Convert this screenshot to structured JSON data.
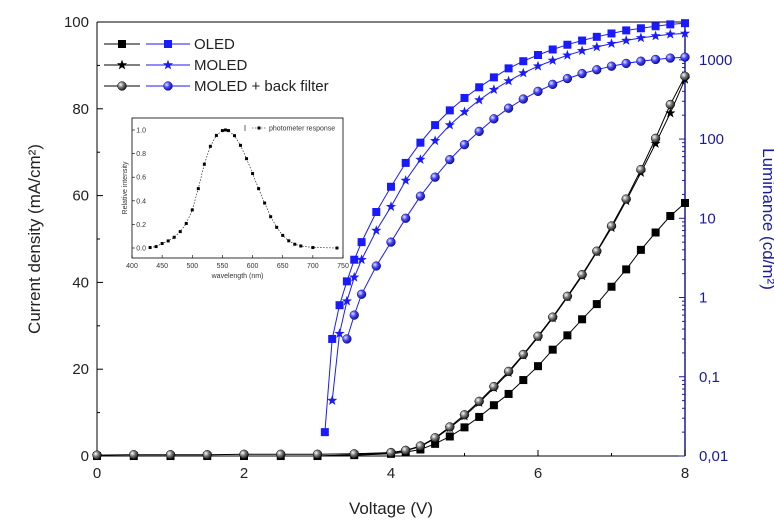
{
  "chart_data": [
    {
      "type": "scatter",
      "xlabel": "Voltage (V)",
      "ylabel": "Current density (mA/cm²)",
      "y2label": "Luminance (cd/m²)",
      "xlim": [
        0,
        8
      ],
      "ylim": [
        0,
        100
      ],
      "y2lim": [
        0.01,
        3000
      ],
      "y2scale": "log",
      "x_ticks": [
        "0",
        "2",
        "4",
        "6",
        "8"
      ],
      "y_ticks": [
        "0",
        "20",
        "40",
        "60",
        "80",
        "100"
      ],
      "y2_ticks": [
        "0,01",
        "0,1",
        "1",
        "10",
        "100",
        "1000"
      ],
      "legend": {
        "position": "top-left",
        "entries": [
          "OLED",
          "MOLED",
          "MOLED + back filter"
        ]
      },
      "series": [
        {
          "name": "OLED",
          "axis": "left",
          "marker": "square",
          "color": "#000000",
          "x": [
            0,
            0.5,
            1,
            1.5,
            2,
            2.5,
            3,
            3.5,
            4,
            4.2,
            4.4,
            4.6,
            4.8,
            5,
            5.2,
            5.4,
            5.6,
            5.8,
            6,
            6.2,
            6.4,
            6.6,
            6.8,
            7,
            7.2,
            7.4,
            7.6,
            7.8,
            8
          ],
          "values": [
            0,
            0,
            0,
            0,
            0,
            0,
            0,
            0.2,
            0.5,
            0.9,
            1.5,
            2.8,
            4.5,
            6.6,
            9,
            11.7,
            14.3,
            17.5,
            20.7,
            24.5,
            27.8,
            31.5,
            35,
            39,
            43,
            47.5,
            51.5,
            55.3,
            58.3
          ]
        },
        {
          "name": "MOLED",
          "axis": "left",
          "marker": "star",
          "color": "#000000",
          "x": [
            0,
            0.5,
            1,
            1.5,
            2,
            2.5,
            3,
            3.5,
            4,
            4.2,
            4.4,
            4.6,
            4.8,
            5,
            5.2,
            5.4,
            5.6,
            5.8,
            6,
            6.2,
            6.4,
            6.6,
            6.8,
            7,
            7.2,
            7.4,
            7.6,
            7.8,
            8
          ],
          "values": [
            0,
            0,
            0,
            0,
            0,
            0,
            0,
            0.3,
            0.7,
            1.2,
            2.2,
            4,
            6.5,
            9.2,
            12.3,
            15.7,
            19.2,
            23.2,
            27.4,
            31.8,
            36.6,
            41.5,
            47,
            52.6,
            58.8,
            65.3,
            72,
            79,
            86.8
          ]
        },
        {
          "name": "MOLED + back filter",
          "axis": "left",
          "marker": "sphere",
          "color": "#000000",
          "x": [
            0,
            0.5,
            1,
            1.5,
            2,
            2.5,
            3,
            3.5,
            4,
            4.2,
            4.4,
            4.6,
            4.8,
            5,
            5.2,
            5.4,
            5.6,
            5.8,
            6,
            6.2,
            6.4,
            6.6,
            6.8,
            7,
            7.2,
            7.4,
            7.6,
            7.8,
            8
          ],
          "values": [
            0.2,
            0.3,
            0.3,
            0.3,
            0.4,
            0.4,
            0.4,
            0.5,
            0.8,
            1.3,
            2.3,
            4.2,
            6.7,
            9.5,
            12.6,
            16,
            19.5,
            23.4,
            27.6,
            32,
            36.8,
            41.8,
            47.2,
            53,
            59.2,
            66,
            73.2,
            81,
            87.5
          ]
        },
        {
          "name": "OLED",
          "axis": "right",
          "marker": "square",
          "color": "#1a1aff",
          "x": [
            3.1,
            3.2,
            3.3,
            3.4,
            3.5,
            3.6,
            3.8,
            4,
            4.2,
            4.4,
            4.6,
            4.8,
            5,
            5.2,
            5.4,
            5.6,
            5.8,
            6,
            6.2,
            6.4,
            6.6,
            6.8,
            7,
            7.2,
            7.4,
            7.6,
            7.8,
            8
          ],
          "values": [
            0.02,
            0.3,
            0.8,
            1.6,
            3,
            5,
            12,
            25,
            50,
            90,
            150,
            230,
            330,
            450,
            600,
            780,
            960,
            1150,
            1350,
            1550,
            1750,
            1950,
            2150,
            2350,
            2500,
            2650,
            2800,
            2900
          ]
        },
        {
          "name": "MOLED",
          "axis": "right",
          "marker": "star",
          "color": "#1a1aff",
          "x": [
            3.2,
            3.3,
            3.4,
            3.5,
            3.6,
            3.8,
            4,
            4.2,
            4.4,
            4.6,
            4.8,
            5,
            5.2,
            5.4,
            5.6,
            5.8,
            6,
            6.2,
            6.4,
            6.6,
            6.8,
            7,
            7.2,
            7.4,
            7.6,
            7.8,
            8
          ],
          "values": [
            0.05,
            0.35,
            0.9,
            1.8,
            3,
            7,
            14,
            30,
            55,
            95,
            150,
            220,
            310,
            420,
            540,
            680,
            830,
            980,
            1140,
            1300,
            1450,
            1600,
            1750,
            1890,
            2000,
            2100,
            2150
          ]
        },
        {
          "name": "MOLED + back filter",
          "axis": "right",
          "marker": "sphere",
          "color": "#1a1aff",
          "x": [
            3.4,
            3.5,
            3.6,
            3.8,
            4,
            4.2,
            4.4,
            4.6,
            4.8,
            5,
            5.2,
            5.4,
            5.6,
            5.8,
            6,
            6.2,
            6.4,
            6.6,
            6.8,
            7,
            7.2,
            7.4,
            7.6,
            7.8,
            8
          ],
          "values": [
            0.3,
            0.6,
            1.1,
            2.5,
            5,
            10,
            19,
            33,
            55,
            85,
            125,
            180,
            245,
            320,
            400,
            490,
            580,
            670,
            750,
            830,
            900,
            960,
            1010,
            1050,
            1080
          ]
        }
      ]
    },
    {
      "type": "line",
      "xlabel": "wavelength (nm)",
      "ylabel": "Relative intensity",
      "xlim": [
        400,
        750
      ],
      "ylim": [
        0,
        1.0
      ],
      "x_ticks": [
        "400",
        "450",
        "500",
        "550",
        "600",
        "650",
        "700",
        "750"
      ],
      "y_ticks": [
        "0.0",
        "0.2",
        "0.4",
        "0.6",
        "0.8",
        "1.0"
      ],
      "legend": {
        "position": "top-right",
        "entries": [
          "photometer response"
        ]
      },
      "series": [
        {
          "name": "photometer response",
          "marker": "square",
          "color": "#000000",
          "x": [
            430,
            440,
            450,
            460,
            470,
            480,
            490,
            500,
            510,
            520,
            530,
            540,
            550,
            555,
            560,
            570,
            580,
            590,
            600,
            610,
            620,
            630,
            640,
            650,
            660,
            670,
            680,
            700,
            740
          ],
          "values": [
            0.004,
            0.012,
            0.038,
            0.06,
            0.091,
            0.139,
            0.208,
            0.323,
            0.503,
            0.71,
            0.862,
            0.954,
            0.995,
            1.0,
            0.995,
            0.952,
            0.87,
            0.757,
            0.631,
            0.503,
            0.381,
            0.265,
            0.175,
            0.107,
            0.061,
            0.032,
            0.017,
            0.004,
            0.0
          ]
        }
      ]
    }
  ]
}
